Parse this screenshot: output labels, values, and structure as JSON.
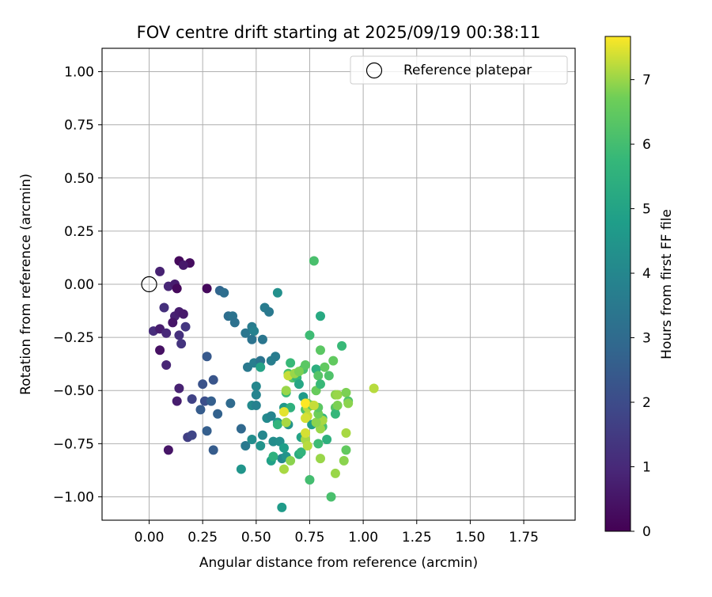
{
  "chart_data": {
    "type": "scatter",
    "title": "FOV centre drift starting at 2025/09/19 00:38:11",
    "xlabel": "Angular distance from reference (arcmin)",
    "ylabel": "Rotation from reference (arcmin)",
    "xlim": [
      -0.22,
      1.99
    ],
    "ylim": [
      -1.11,
      1.11
    ],
    "xticks": [
      0.0,
      0.25,
      0.5,
      0.75,
      1.0,
      1.25,
      1.5,
      1.75
    ],
    "xtick_labels": [
      "0.00",
      "0.25",
      "0.50",
      "0.75",
      "1.00",
      "1.25",
      "1.50",
      "1.75"
    ],
    "yticks": [
      1.0,
      0.75,
      0.5,
      0.25,
      0.0,
      -0.25,
      -0.5,
      -0.75,
      -1.0
    ],
    "ytick_labels": [
      "1.00",
      "0.75",
      "0.50",
      "0.25",
      "0.00",
      "−0.25",
      "−0.50",
      "−0.75",
      "−1.00"
    ],
    "grid": true,
    "legend": {
      "position": "top-right",
      "label": "Reference platepar"
    },
    "reference_point": {
      "x": 0.0,
      "y": 0.0
    },
    "colorbar": {
      "label": "Hours from first FF file",
      "range": [
        0,
        7.67
      ],
      "ticks": [
        0,
        1,
        2,
        3,
        4,
        5,
        6,
        7
      ],
      "tick_labels": [
        "0",
        "1",
        "2",
        "3",
        "4",
        "5",
        "6",
        "7"
      ],
      "colormap": "viridis"
    },
    "points": [
      [
        0.05,
        0.06,
        0.8
      ],
      [
        0.14,
        0.11,
        0.2
      ],
      [
        0.19,
        0.1,
        0.3
      ],
      [
        0.16,
        0.09,
        0.6
      ],
      [
        0.09,
        -0.01,
        0.9
      ],
      [
        0.12,
        0.0,
        0.7
      ],
      [
        0.13,
        -0.02,
        0.2
      ],
      [
        0.27,
        -0.02,
        0.2
      ],
      [
        0.33,
        -0.03,
        2.8
      ],
      [
        0.35,
        -0.04,
        3.1
      ],
      [
        0.07,
        -0.11,
        1.2
      ],
      [
        0.12,
        -0.15,
        0.8
      ],
      [
        0.14,
        -0.13,
        0.7
      ],
      [
        0.16,
        -0.14,
        0.6
      ],
      [
        0.11,
        -0.18,
        0.5
      ],
      [
        0.17,
        -0.2,
        1.4
      ],
      [
        0.02,
        -0.22,
        1.1
      ],
      [
        0.05,
        -0.21,
        0.7
      ],
      [
        0.08,
        -0.23,
        1.0
      ],
      [
        0.14,
        -0.24,
        1.2
      ],
      [
        0.15,
        -0.28,
        1.3
      ],
      [
        0.05,
        -0.31,
        0.4
      ],
      [
        0.08,
        -0.38,
        0.9
      ],
      [
        0.14,
        -0.49,
        0.8
      ],
      [
        0.13,
        -0.55,
        0.7
      ],
      [
        0.09,
        -0.78,
        0.5
      ],
      [
        0.2,
        -0.54,
        1.7
      ],
      [
        0.18,
        -0.72,
        1.6
      ],
      [
        0.2,
        -0.71,
        1.8
      ],
      [
        0.25,
        -0.47,
        2.2
      ],
      [
        0.27,
        -0.34,
        2.4
      ],
      [
        0.3,
        -0.45,
        2.3
      ],
      [
        0.26,
        -0.55,
        2.1
      ],
      [
        0.29,
        -0.55,
        2.6
      ],
      [
        0.24,
        -0.59,
        2.5
      ],
      [
        0.32,
        -0.61,
        2.7
      ],
      [
        0.27,
        -0.69,
        2.6
      ],
      [
        0.3,
        -0.78,
        2.5
      ],
      [
        0.38,
        -0.56,
        3.0
      ],
      [
        0.37,
        -0.15,
        3.1
      ],
      [
        0.39,
        -0.15,
        3.3
      ],
      [
        0.4,
        -0.18,
        3.2
      ],
      [
        0.43,
        -0.68,
        2.9
      ],
      [
        0.45,
        -0.23,
        3.4
      ],
      [
        0.48,
        -0.2,
        3.6
      ],
      [
        0.48,
        -0.26,
        3.3
      ],
      [
        0.49,
        -0.22,
        3.8
      ],
      [
        0.46,
        -0.39,
        3.5
      ],
      [
        0.49,
        -0.37,
        3.7
      ],
      [
        0.52,
        -0.36,
        3.3
      ],
      [
        0.53,
        -0.26,
        3.4
      ],
      [
        0.54,
        -0.11,
        3.6
      ],
      [
        0.56,
        -0.13,
        3.5
      ],
      [
        0.6,
        -0.04,
        4.3
      ],
      [
        0.57,
        -0.36,
        3.7
      ],
      [
        0.59,
        -0.34,
        3.6
      ],
      [
        0.52,
        -0.39,
        5.0
      ],
      [
        0.5,
        -0.48,
        4.0
      ],
      [
        0.5,
        -0.52,
        3.9
      ],
      [
        0.48,
        -0.57,
        4.1
      ],
      [
        0.5,
        -0.57,
        3.8
      ],
      [
        0.45,
        -0.76,
        3.5
      ],
      [
        0.43,
        -0.87,
        4.5
      ],
      [
        0.48,
        -0.73,
        4.2
      ],
      [
        0.52,
        -0.76,
        4.4
      ],
      [
        0.53,
        -0.71,
        4.0
      ],
      [
        0.55,
        -0.63,
        4.1
      ],
      [
        0.57,
        -0.62,
        3.9
      ],
      [
        0.58,
        -0.74,
        4.2
      ],
      [
        0.6,
        -0.65,
        4.6
      ],
      [
        0.61,
        -0.74,
        4.3
      ],
      [
        0.62,
        -0.82,
        4.0
      ],
      [
        0.64,
        -0.81,
        4.4
      ],
      [
        0.63,
        -0.77,
        4.8
      ],
      [
        0.57,
        -0.83,
        4.9
      ],
      [
        0.58,
        -0.81,
        5.5
      ],
      [
        0.62,
        -1.05,
        4.7
      ],
      [
        0.6,
        -0.66,
        5.6
      ],
      [
        0.63,
        -0.58,
        4.6
      ],
      [
        0.65,
        -0.66,
        4.4
      ],
      [
        0.64,
        -0.51,
        5.8
      ],
      [
        0.65,
        -0.42,
        6.2
      ],
      [
        0.66,
        -0.58,
        5.5
      ],
      [
        0.67,
        -0.44,
        6.3
      ],
      [
        0.66,
        -0.37,
        5.8
      ],
      [
        0.69,
        -0.44,
        5.7
      ],
      [
        0.7,
        -0.47,
        5.1
      ],
      [
        0.7,
        -0.8,
        5.3
      ],
      [
        0.71,
        -0.79,
        5.6
      ],
      [
        0.71,
        -0.72,
        5.0
      ],
      [
        0.72,
        -0.53,
        4.7
      ],
      [
        0.72,
        -0.4,
        6.1
      ],
      [
        0.73,
        -0.38,
        6.4
      ],
      [
        0.73,
        -0.59,
        6.2
      ],
      [
        0.74,
        -0.56,
        6.8
      ],
      [
        0.74,
        -0.62,
        7.3
      ],
      [
        0.75,
        -0.24,
        5.9
      ],
      [
        0.75,
        -0.92,
        6.0
      ],
      [
        0.76,
        -0.66,
        4.8
      ],
      [
        0.77,
        0.11,
        6.1
      ],
      [
        0.78,
        -0.4,
        5.4
      ],
      [
        0.78,
        -0.5,
        6.6
      ],
      [
        0.79,
        -0.43,
        6.3
      ],
      [
        0.79,
        -0.75,
        5.9
      ],
      [
        0.8,
        -0.31,
        6.4
      ],
      [
        0.8,
        -0.47,
        5.8
      ],
      [
        0.8,
        -0.15,
        5.2
      ],
      [
        0.81,
        -0.63,
        5.6
      ],
      [
        0.81,
        -0.67,
        6.1
      ],
      [
        0.82,
        -0.39,
        6.5
      ],
      [
        0.83,
        -0.73,
        5.5
      ],
      [
        0.84,
        -0.43,
        6.2
      ],
      [
        0.85,
        -1.0,
        6.1
      ],
      [
        0.86,
        -0.36,
        6.5
      ],
      [
        0.87,
        -0.52,
        6.9
      ],
      [
        0.87,
        -0.58,
        6.3
      ],
      [
        0.87,
        -0.61,
        5.7
      ],
      [
        0.88,
        -0.52,
        7.0
      ],
      [
        0.88,
        -0.57,
        6.8
      ],
      [
        0.9,
        -0.29,
        5.8
      ],
      [
        0.91,
        -0.83,
        6.9
      ],
      [
        0.92,
        -0.51,
        6.8
      ],
      [
        0.92,
        -0.7,
        7.1
      ],
      [
        0.92,
        -0.78,
        6.5
      ],
      [
        0.93,
        -0.55,
        6.2
      ],
      [
        0.93,
        -0.56,
        6.9
      ],
      [
        1.05,
        -0.49,
        7.2
      ],
      [
        0.87,
        -0.89,
        7.0
      ],
      [
        0.8,
        -0.82,
        7.0
      ],
      [
        0.73,
        -0.73,
        7.1
      ],
      [
        0.73,
        -0.7,
        7.4
      ],
      [
        0.74,
        -0.76,
        7.2
      ],
      [
        0.73,
        -0.63,
        7.4
      ],
      [
        0.74,
        -0.58,
        7.2
      ],
      [
        0.76,
        -0.57,
        6.5
      ],
      [
        0.8,
        -0.68,
        7.0
      ],
      [
        0.81,
        -0.64,
        7.1
      ],
      [
        0.78,
        -0.65,
        6.9
      ],
      [
        0.79,
        -0.61,
        6.7
      ],
      [
        0.79,
        -0.58,
        6.4
      ],
      [
        0.63,
        -0.87,
        7.1
      ],
      [
        0.66,
        -0.83,
        6.9
      ],
      [
        0.64,
        -0.5,
        7.0
      ],
      [
        0.65,
        -0.43,
        7.3
      ],
      [
        0.68,
        -0.42,
        7.0
      ],
      [
        0.7,
        -0.41,
        6.8
      ],
      [
        0.73,
        -0.56,
        7.67
      ],
      [
        0.63,
        -0.6,
        7.5
      ],
      [
        0.64,
        -0.65,
        7.1
      ],
      [
        0.77,
        -0.57,
        7.3
      ]
    ]
  }
}
